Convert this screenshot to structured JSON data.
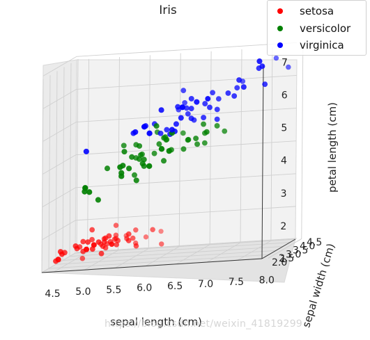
{
  "chart_data": {
    "type": "scatter",
    "title": "Iris",
    "xlabel": "sepal length (cm)",
    "ylabel": "sepal width (cm)",
    "zlabel": "petal length (cm)",
    "xticks": [
      "4.5",
      "5.0",
      "5.5",
      "6.0",
      "6.5",
      "7.0",
      "7.5",
      "8.0"
    ],
    "yticks": [
      "2.0",
      "2.5",
      "3.0",
      "3.5",
      "4.0",
      "4.5"
    ],
    "zticks": [
      "1",
      "2",
      "3",
      "4",
      "5",
      "6",
      "7"
    ],
    "xlim": [
      4.3,
      7.9
    ],
    "ylim": [
      2.0,
      4.4
    ],
    "zlim": [
      1.0,
      6.9
    ],
    "legend_position": "top-right",
    "grid": true,
    "series": [
      {
        "name": "setosa",
        "color": "#ff0000",
        "points": [
          [
            5.1,
            3.5,
            1.4
          ],
          [
            4.9,
            3.0,
            1.4
          ],
          [
            4.7,
            3.2,
            1.3
          ],
          [
            4.6,
            3.1,
            1.5
          ],
          [
            5.0,
            3.6,
            1.4
          ],
          [
            5.4,
            3.9,
            1.7
          ],
          [
            4.6,
            3.4,
            1.4
          ],
          [
            5.0,
            3.4,
            1.5
          ],
          [
            4.4,
            2.9,
            1.4
          ],
          [
            4.9,
            3.1,
            1.5
          ],
          [
            5.4,
            3.7,
            1.5
          ],
          [
            4.8,
            3.4,
            1.6
          ],
          [
            4.8,
            3.0,
            1.4
          ],
          [
            4.3,
            3.0,
            1.1
          ],
          [
            5.8,
            4.0,
            1.2
          ],
          [
            5.7,
            4.4,
            1.5
          ],
          [
            5.4,
            3.9,
            1.3
          ],
          [
            5.1,
            3.5,
            1.4
          ],
          [
            5.7,
            3.8,
            1.7
          ],
          [
            5.1,
            3.8,
            1.5
          ],
          [
            5.4,
            3.4,
            1.7
          ],
          [
            5.1,
            3.7,
            1.5
          ],
          [
            4.6,
            3.6,
            1.0
          ],
          [
            5.1,
            3.3,
            1.7
          ],
          [
            4.8,
            3.4,
            1.9
          ],
          [
            5.0,
            3.0,
            1.6
          ],
          [
            5.0,
            3.4,
            1.6
          ],
          [
            5.2,
            3.5,
            1.5
          ],
          [
            5.2,
            3.4,
            1.4
          ],
          [
            4.7,
            3.2,
            1.6
          ],
          [
            4.8,
            3.1,
            1.6
          ],
          [
            5.4,
            3.4,
            1.5
          ],
          [
            5.2,
            4.1,
            1.5
          ],
          [
            5.5,
            4.2,
            1.4
          ],
          [
            4.9,
            3.1,
            1.5
          ],
          [
            5.0,
            3.2,
            1.2
          ],
          [
            5.5,
            3.5,
            1.3
          ],
          [
            4.9,
            3.6,
            1.4
          ],
          [
            4.4,
            3.0,
            1.3
          ],
          [
            5.1,
            3.4,
            1.5
          ],
          [
            5.0,
            3.5,
            1.3
          ],
          [
            4.5,
            2.3,
            1.3
          ],
          [
            4.4,
            3.2,
            1.3
          ],
          [
            5.0,
            3.5,
            1.6
          ],
          [
            5.1,
            3.8,
            1.9
          ],
          [
            4.8,
            3.0,
            1.4
          ],
          [
            5.1,
            3.8,
            1.6
          ],
          [
            4.6,
            3.2,
            1.4
          ],
          [
            5.3,
            3.7,
            1.5
          ],
          [
            5.0,
            3.3,
            1.4
          ]
        ]
      },
      {
        "name": "versicolor",
        "color": "#008000",
        "points": [
          [
            7.0,
            3.2,
            4.7
          ],
          [
            6.4,
            3.2,
            4.5
          ],
          [
            6.9,
            3.1,
            4.9
          ],
          [
            5.5,
            2.3,
            4.0
          ],
          [
            6.5,
            2.8,
            4.6
          ],
          [
            5.7,
            2.8,
            4.5
          ],
          [
            6.3,
            3.3,
            4.7
          ],
          [
            4.9,
            2.4,
            3.3
          ],
          [
            6.6,
            2.9,
            4.6
          ],
          [
            5.2,
            2.7,
            3.9
          ],
          [
            5.0,
            2.0,
            3.5
          ],
          [
            5.9,
            3.0,
            4.2
          ],
          [
            6.0,
            2.2,
            4.0
          ],
          [
            6.1,
            2.9,
            4.7
          ],
          [
            5.6,
            2.9,
            3.6
          ],
          [
            6.7,
            3.1,
            4.4
          ],
          [
            5.6,
            3.0,
            4.5
          ],
          [
            5.8,
            2.7,
            4.1
          ],
          [
            6.2,
            2.2,
            4.5
          ],
          [
            5.6,
            2.5,
            3.9
          ],
          [
            5.9,
            3.2,
            4.8
          ],
          [
            6.1,
            2.8,
            4.0
          ],
          [
            6.3,
            2.5,
            4.9
          ],
          [
            6.1,
            2.8,
            4.7
          ],
          [
            6.4,
            2.9,
            4.3
          ],
          [
            6.6,
            3.0,
            4.4
          ],
          [
            6.8,
            2.8,
            4.8
          ],
          [
            6.7,
            3.0,
            5.0
          ],
          [
            6.0,
            2.9,
            4.5
          ],
          [
            5.7,
            2.6,
            3.5
          ],
          [
            5.5,
            2.4,
            3.8
          ],
          [
            5.5,
            2.4,
            3.7
          ],
          [
            5.8,
            2.7,
            3.9
          ],
          [
            6.0,
            2.7,
            5.1
          ],
          [
            5.4,
            3.0,
            4.5
          ],
          [
            6.0,
            3.4,
            4.5
          ],
          [
            6.7,
            3.1,
            4.7
          ],
          [
            6.3,
            2.3,
            4.4
          ],
          [
            5.6,
            3.0,
            4.1
          ],
          [
            5.5,
            2.5,
            4.0
          ],
          [
            5.5,
            2.6,
            4.4
          ],
          [
            6.1,
            3.0,
            4.6
          ],
          [
            5.8,
            2.6,
            4.0
          ],
          [
            5.0,
            2.3,
            3.3
          ],
          [
            5.6,
            2.7,
            4.2
          ],
          [
            5.7,
            3.0,
            4.2
          ],
          [
            5.7,
            2.9,
            4.2
          ],
          [
            6.2,
            2.9,
            4.3
          ],
          [
            5.1,
            2.5,
            3.0
          ],
          [
            5.7,
            2.8,
            4.1
          ]
        ]
      },
      {
        "name": "virginica",
        "color": "#0000ff",
        "points": [
          [
            6.3,
            3.3,
            6.0
          ],
          [
            5.8,
            2.7,
            5.1
          ],
          [
            7.1,
            3.0,
            5.9
          ],
          [
            6.3,
            2.9,
            5.6
          ],
          [
            6.5,
            3.0,
            5.8
          ],
          [
            7.6,
            3.0,
            6.6
          ],
          [
            4.9,
            2.5,
            4.5
          ],
          [
            7.3,
            2.9,
            6.3
          ],
          [
            6.7,
            2.5,
            5.8
          ],
          [
            7.2,
            3.6,
            6.1
          ],
          [
            6.5,
            3.2,
            5.1
          ],
          [
            6.4,
            2.7,
            5.3
          ],
          [
            6.8,
            3.0,
            5.5
          ],
          [
            5.7,
            2.5,
            5.0
          ],
          [
            5.8,
            2.8,
            5.1
          ],
          [
            6.4,
            3.2,
            5.3
          ],
          [
            6.5,
            3.0,
            5.5
          ],
          [
            7.7,
            3.8,
            6.7
          ],
          [
            7.7,
            2.6,
            6.9
          ],
          [
            6.0,
            2.2,
            5.0
          ],
          [
            6.9,
            3.2,
            5.7
          ],
          [
            5.6,
            2.8,
            4.9
          ],
          [
            7.7,
            2.8,
            6.7
          ],
          [
            6.3,
            2.7,
            4.9
          ],
          [
            6.7,
            3.3,
            5.7
          ],
          [
            7.2,
            3.2,
            6.0
          ],
          [
            6.2,
            2.8,
            4.8
          ],
          [
            6.1,
            3.0,
            4.9
          ],
          [
            6.4,
            2.8,
            5.6
          ],
          [
            7.2,
            3.0,
            5.8
          ],
          [
            7.4,
            2.8,
            6.1
          ],
          [
            7.9,
            3.8,
            6.4
          ],
          [
            6.4,
            2.8,
            5.6
          ],
          [
            6.3,
            2.8,
            5.1
          ],
          [
            6.1,
            2.6,
            5.6
          ],
          [
            7.7,
            3.0,
            6.1
          ],
          [
            6.3,
            3.4,
            5.6
          ],
          [
            6.4,
            3.1,
            5.5
          ],
          [
            6.0,
            3.0,
            4.8
          ],
          [
            6.9,
            3.1,
            5.4
          ],
          [
            6.7,
            3.1,
            5.6
          ],
          [
            6.9,
            3.1,
            5.1
          ],
          [
            5.8,
            2.7,
            5.1
          ],
          [
            6.8,
            3.2,
            5.9
          ],
          [
            6.7,
            3.3,
            5.7
          ],
          [
            6.7,
            3.0,
            5.2
          ],
          [
            6.3,
            2.5,
            5.0
          ],
          [
            6.5,
            3.0,
            5.2
          ],
          [
            6.2,
            3.4,
            5.4
          ],
          [
            5.9,
            3.0,
            5.1
          ]
        ]
      }
    ]
  },
  "watermark": "https://blog.csdn.net/weixin_41819299"
}
